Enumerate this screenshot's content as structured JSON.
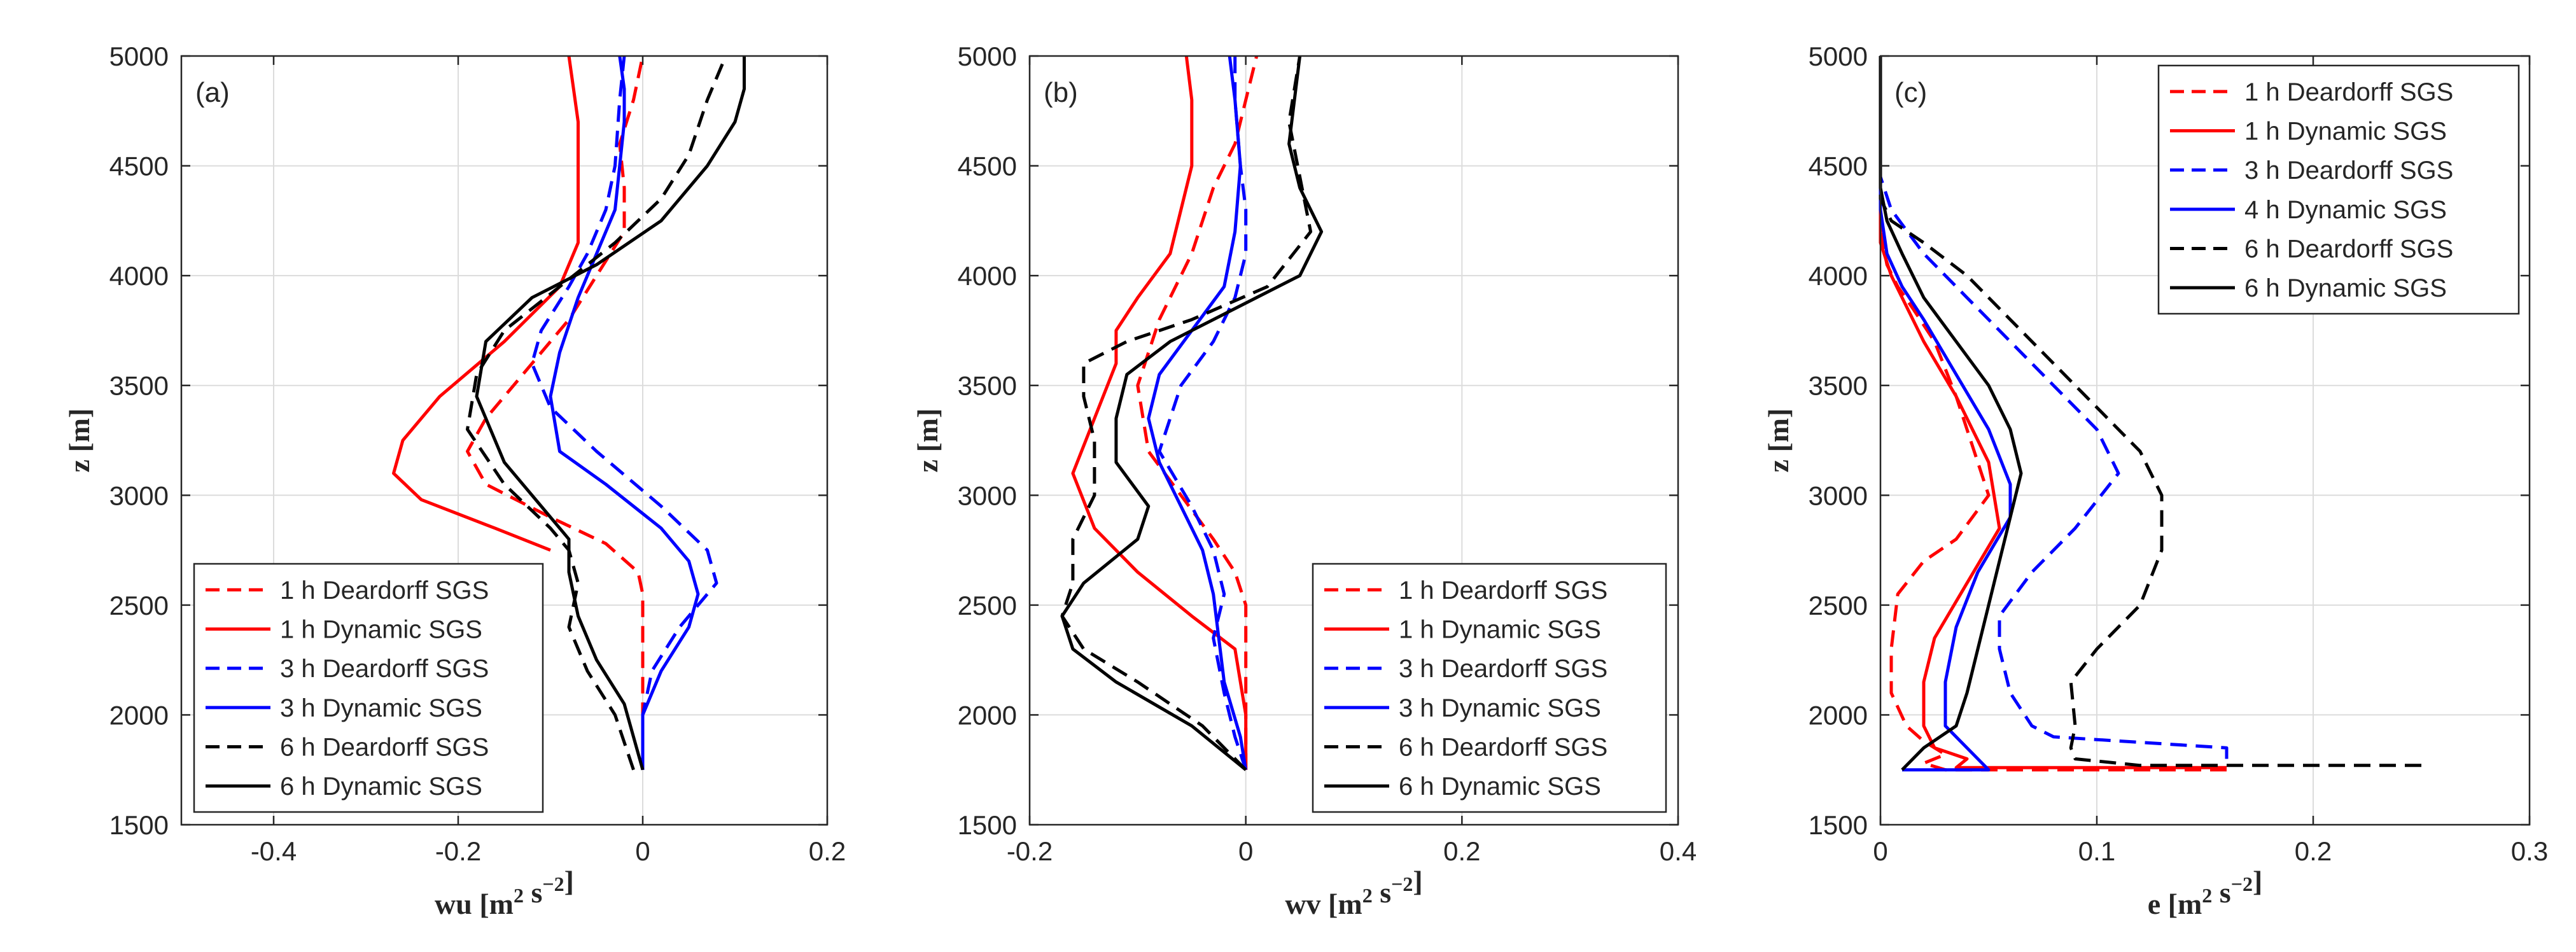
{
  "chart_data": [
    {
      "type": "line",
      "panel_label": "(a)",
      "xlabel": "wu",
      "xlabel_unit": "[m",
      "xlabel_unit_exp1": "2",
      "xlabel_unit_mid": " s",
      "xlabel_unit_exp2": "−2",
      "xlabel_unit_end": "]",
      "ylabel": "z [m]",
      "xlim": [
        -0.5,
        0.2
      ],
      "ylim": [
        1500,
        5000
      ],
      "xticks": [
        -0.4,
        -0.2,
        0,
        0.2
      ],
      "xtick_labels": [
        "-0.4",
        "-0.2",
        "0",
        "0.2"
      ],
      "yticks": [
        1500,
        2000,
        2500,
        3000,
        3500,
        4000,
        4500,
        5000
      ],
      "ytick_labels": [
        "1500",
        "2000",
        "2500",
        "3000",
        "3500",
        "4000",
        "4500",
        "5000"
      ],
      "grid": true,
      "legend_position": "bottom-left",
      "series": [
        {
          "name": "1 h Deardorff SGS",
          "color": "#ff0000",
          "dash": "dashed",
          "x": [
            0.0,
            0.0,
            0.0,
            0.0,
            -0.005,
            -0.04,
            -0.1,
            -0.17,
            -0.19,
            -0.17,
            -0.12,
            -0.08,
            -0.05,
            -0.02,
            -0.02,
            -0.025,
            -0.01,
            0.0
          ],
          "y": [
            1750,
            2000,
            2300,
            2550,
            2650,
            2780,
            2900,
            3050,
            3200,
            3350,
            3600,
            3800,
            4000,
            4200,
            4400,
            4600,
            4800,
            5000
          ]
        },
        {
          "name": "1 h Dynamic SGS",
          "color": "#ff0000",
          "dash": "solid",
          "x": [
            -0.1,
            -0.16,
            -0.24,
            -0.27,
            -0.26,
            -0.22,
            -0.15,
            -0.09,
            -0.07,
            -0.07,
            -0.07,
            -0.07,
            -0.075,
            -0.08
          ],
          "y": [
            2750,
            2850,
            2980,
            3100,
            3250,
            3450,
            3700,
            3950,
            4150,
            4300,
            4500,
            4700,
            4850,
            5000
          ]
        },
        {
          "name": "3 h Deardorff SGS",
          "color": "#0000ff",
          "dash": "dashed",
          "x": [
            0.0,
            0.0,
            0.01,
            0.04,
            0.08,
            0.07,
            0.02,
            -0.05,
            -0.1,
            -0.12,
            -0.11,
            -0.08,
            -0.06,
            -0.04,
            -0.03,
            -0.025,
            -0.02
          ],
          "y": [
            1750,
            2000,
            2200,
            2400,
            2600,
            2750,
            2950,
            3200,
            3400,
            3600,
            3750,
            3950,
            4100,
            4300,
            4500,
            4800,
            5000
          ]
        },
        {
          "name": "3 h Dynamic SGS",
          "color": "#0000ff",
          "dash": "solid",
          "x": [
            0.0,
            0.0,
            0.02,
            0.05,
            0.06,
            0.05,
            0.02,
            -0.04,
            -0.09,
            -0.1,
            -0.09,
            -0.07,
            -0.05,
            -0.03,
            -0.025,
            -0.02,
            -0.02,
            -0.025
          ],
          "y": [
            1750,
            2000,
            2200,
            2400,
            2550,
            2700,
            2850,
            3050,
            3200,
            3450,
            3650,
            3900,
            4100,
            4300,
            4500,
            4700,
            4850,
            5000
          ]
        },
        {
          "name": "6 h Deardorff SGS",
          "color": "#000000",
          "dash": "dashed",
          "x": [
            -0.01,
            -0.03,
            -0.06,
            -0.08,
            -0.07,
            -0.08,
            -0.1,
            -0.15,
            -0.19,
            -0.18,
            -0.15,
            -0.09,
            -0.03,
            0.02,
            0.05,
            0.07,
            0.09
          ],
          "y": [
            1750,
            2000,
            2200,
            2400,
            2600,
            2750,
            2850,
            3050,
            3300,
            3550,
            3750,
            3950,
            4150,
            4350,
            4550,
            4800,
            5000
          ]
        },
        {
          "name": "6 h Dynamic SGS",
          "color": "#000000",
          "dash": "solid",
          "x": [
            0.0,
            -0.01,
            -0.02,
            -0.05,
            -0.07,
            -0.08,
            -0.08,
            -0.11,
            -0.15,
            -0.18,
            -0.17,
            -0.12,
            -0.05,
            0.02,
            0.07,
            0.1,
            0.11,
            0.11
          ],
          "y": [
            1750,
            1900,
            2050,
            2250,
            2450,
            2650,
            2800,
            2950,
            3150,
            3450,
            3700,
            3900,
            4050,
            4250,
            4500,
            4700,
            4850,
            5000
          ]
        }
      ]
    },
    {
      "type": "line",
      "panel_label": "(b)",
      "xlabel": "wv",
      "xlabel_unit": "[m",
      "xlabel_unit_exp1": "2",
      "xlabel_unit_mid": " s",
      "xlabel_unit_exp2": "−2",
      "xlabel_unit_end": "]",
      "ylabel": "z [m]",
      "xlim": [
        -0.2,
        0.4
      ],
      "ylim": [
        1500,
        5000
      ],
      "xticks": [
        -0.2,
        0,
        0.2,
        0.4
      ],
      "xtick_labels": [
        "-0.2",
        "0",
        "0.2",
        "0.4"
      ],
      "yticks": [
        1500,
        2000,
        2500,
        3000,
        3500,
        4000,
        4500,
        5000
      ],
      "ytick_labels": [
        "1500",
        "2000",
        "2500",
        "3000",
        "3500",
        "4000",
        "4500",
        "5000"
      ],
      "grid": true,
      "legend_position": "bottom-right",
      "series": [
        {
          "name": "1 h Deardorff SGS",
          "color": "#ff0000",
          "dash": "dashed",
          "x": [
            0.0,
            0.0,
            0.0,
            0.0,
            -0.01,
            -0.03,
            -0.06,
            -0.09,
            -0.1,
            -0.08,
            -0.05,
            -0.03,
            -0.01,
            0.0,
            0.01
          ],
          "y": [
            1750,
            2000,
            2300,
            2500,
            2650,
            2800,
            3000,
            3200,
            3500,
            3800,
            4100,
            4400,
            4600,
            4800,
            5000
          ]
        },
        {
          "name": "1 h Dynamic SGS",
          "color": "#ff0000",
          "dash": "solid",
          "x": [
            0.0,
            0.0,
            -0.01,
            -0.05,
            -0.1,
            -0.14,
            -0.16,
            -0.14,
            -0.12,
            -0.12,
            -0.1,
            -0.07,
            -0.06,
            -0.05,
            -0.05,
            -0.055
          ],
          "y": [
            1750,
            2000,
            2300,
            2450,
            2650,
            2850,
            3100,
            3350,
            3600,
            3750,
            3900,
            4100,
            4300,
            4500,
            4800,
            5000
          ]
        },
        {
          "name": "3 h Deardorff SGS",
          "color": "#0000ff",
          "dash": "dashed",
          "x": [
            0.0,
            -0.01,
            -0.02,
            -0.03,
            -0.02,
            -0.03,
            -0.05,
            -0.08,
            -0.06,
            -0.03,
            -0.01,
            0.0,
            0.0,
            -0.005,
            -0.01,
            -0.01
          ],
          "y": [
            1750,
            1900,
            2100,
            2350,
            2550,
            2750,
            2950,
            3200,
            3500,
            3700,
            3900,
            4100,
            4300,
            4500,
            4800,
            5000
          ]
        },
        {
          "name": "3 h Dynamic SGS",
          "color": "#0000ff",
          "dash": "solid",
          "x": [
            0.0,
            -0.005,
            -0.02,
            -0.025,
            -0.03,
            -0.04,
            -0.06,
            -0.08,
            -0.09,
            -0.08,
            -0.05,
            -0.02,
            -0.01,
            -0.005,
            -0.01,
            -0.015
          ],
          "y": [
            1750,
            1900,
            2150,
            2350,
            2550,
            2750,
            2950,
            3150,
            3350,
            3550,
            3750,
            3950,
            4200,
            4500,
            4800,
            5000
          ]
        },
        {
          "name": "6 h Deardorff SGS",
          "color": "#000000",
          "dash": "dashed",
          "x": [
            0.0,
            -0.04,
            -0.1,
            -0.15,
            -0.17,
            -0.16,
            -0.16,
            -0.14,
            -0.14,
            -0.15,
            -0.15,
            -0.11,
            -0.05,
            0.02,
            0.06,
            0.05,
            0.04,
            0.045,
            0.05
          ],
          "y": [
            1750,
            1950,
            2150,
            2300,
            2450,
            2600,
            2800,
            3000,
            3250,
            3450,
            3600,
            3700,
            3800,
            3950,
            4200,
            4450,
            4700,
            4850,
            5000
          ]
        },
        {
          "name": "6 h Dynamic SGS",
          "color": "#000000",
          "dash": "solid",
          "x": [
            0.0,
            -0.05,
            -0.12,
            -0.16,
            -0.17,
            -0.15,
            -0.1,
            -0.09,
            -0.12,
            -0.12,
            -0.11,
            -0.07,
            -0.01,
            0.05,
            0.07,
            0.05,
            0.04,
            0.045,
            0.05
          ],
          "y": [
            1750,
            1950,
            2150,
            2300,
            2450,
            2600,
            2800,
            2950,
            3150,
            3350,
            3550,
            3700,
            3850,
            4000,
            4200,
            4400,
            4600,
            4800,
            5000
          ]
        }
      ]
    },
    {
      "type": "line",
      "panel_label": "(c)",
      "xlabel": "e",
      "xlabel_unit": "[m",
      "xlabel_unit_exp1": "2",
      "xlabel_unit_mid": " s",
      "xlabel_unit_exp2": "−2",
      "xlabel_unit_end": "]",
      "ylabel": "z [m]",
      "xlim": [
        0,
        0.3
      ],
      "ylim": [
        1500,
        5000
      ],
      "xticks": [
        0,
        0.1,
        0.2,
        0.3
      ],
      "xtick_labels": [
        "0",
        "0.1",
        "0.2",
        "0.3"
      ],
      "yticks": [
        1500,
        2000,
        2500,
        3000,
        3500,
        4000,
        4500,
        5000
      ],
      "ytick_labels": [
        "1500",
        "2000",
        "2500",
        "3000",
        "3500",
        "4000",
        "4500",
        "5000"
      ],
      "grid": true,
      "legend_position": "top-right",
      "series": [
        {
          "name": "1 h Deardorff SGS",
          "color": "#ff0000",
          "dash": "dashed",
          "x": [
            0.16,
            0.03,
            0.02,
            0.03,
            0.02,
            0.012,
            0.005,
            0.005,
            0.008,
            0.02,
            0.035,
            0.05,
            0.045,
            0.035,
            0.025,
            0.015,
            0.008,
            0.003,
            0.0,
            0.0
          ],
          "y": [
            1750,
            1750,
            1780,
            1820,
            1880,
            1950,
            2100,
            2300,
            2550,
            2700,
            2800,
            3000,
            3150,
            3450,
            3700,
            3850,
            3950,
            4050,
            4200,
            5000
          ]
        },
        {
          "name": "1 h Dynamic SGS",
          "color": "#ff0000",
          "dash": "solid",
          "x": [
            0.16,
            0.035,
            0.04,
            0.025,
            0.02,
            0.02,
            0.025,
            0.04,
            0.055,
            0.05,
            0.035,
            0.02,
            0.01,
            0.005,
            0.0,
            0.0
          ],
          "y": [
            1760,
            1760,
            1800,
            1850,
            1950,
            2150,
            2350,
            2600,
            2850,
            3150,
            3450,
            3700,
            3900,
            4000,
            4150,
            5000
          ]
        },
        {
          "name": "3 h Deardorff SGS",
          "color": "#0000ff",
          "dash": "dashed",
          "x": [
            0.16,
            0.16,
            0.08,
            0.07,
            0.06,
            0.055,
            0.055,
            0.07,
            0.09,
            0.11,
            0.1,
            0.08,
            0.06,
            0.04,
            0.02,
            0.005,
            0.0,
            0.0
          ],
          "y": [
            1800,
            1850,
            1900,
            1950,
            2100,
            2300,
            2450,
            2650,
            2850,
            3100,
            3300,
            3500,
            3700,
            3900,
            4100,
            4300,
            4450,
            5000
          ]
        },
        {
          "name": "4 h Dynamic SGS",
          "color": "#0000ff",
          "dash": "solid",
          "x": [
            0.01,
            0.05,
            0.045,
            0.04,
            0.03,
            0.03,
            0.035,
            0.045,
            0.06,
            0.06,
            0.05,
            0.035,
            0.02,
            0.01,
            0.003,
            0.0,
            0.0
          ],
          "y": [
            1750,
            1750,
            1800,
            1850,
            1950,
            2150,
            2400,
            2650,
            2900,
            3050,
            3300,
            3550,
            3800,
            3950,
            4100,
            4300,
            5000
          ]
        },
        {
          "name": "6 h Deardorff SGS",
          "color": "#000000",
          "dash": "dashed",
          "x": [
            0.25,
            0.12,
            0.09,
            0.088,
            0.09,
            0.088,
            0.1,
            0.12,
            0.13,
            0.13,
            0.12,
            0.1,
            0.08,
            0.06,
            0.04,
            0.02,
            0.005,
            0.0,
            0.0
          ],
          "y": [
            1770,
            1770,
            1800,
            1850,
            1950,
            2150,
            2300,
            2500,
            2750,
            3000,
            3200,
            3400,
            3600,
            3800,
            4000,
            4150,
            4250,
            4350,
            5000
          ]
        },
        {
          "name": "6 h Dynamic SGS",
          "color": "#000000",
          "dash": "solid",
          "x": [
            0.01,
            0.02,
            0.035,
            0.04,
            0.045,
            0.05,
            0.055,
            0.06,
            0.065,
            0.06,
            0.05,
            0.035,
            0.02,
            0.01,
            0.003,
            0.0,
            0.0
          ],
          "y": [
            1750,
            1850,
            1950,
            2100,
            2300,
            2500,
            2700,
            2900,
            3100,
            3300,
            3500,
            3700,
            3900,
            4100,
            4250,
            4400,
            5000
          ]
        }
      ]
    }
  ]
}
